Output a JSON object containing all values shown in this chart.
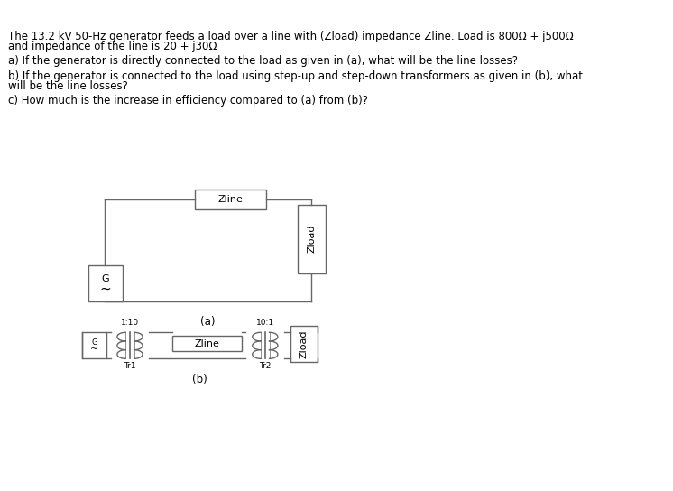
{
  "title_line1": "The 13.2 kV 50-Hz generator feeds a load over a line with (Zload) impedance Zline. Load is 800Ω + j500Ω",
  "title_line2": "and impedance of the line is 20 + j30Ω",
  "q_a": "a) If the generator is directly connected to the load as given in (a), what will be the line losses?",
  "q_b_line1": "b) If the generator is connected to the load using step-up and step-down transformers as given in (b), what",
  "q_b_line2": "will be the line losses?",
  "q_c": "c) How much is the increase in efficiency compared to (a) from (b)?",
  "label_a": "(a)",
  "label_b": "(b)",
  "label_Zline": "Zline",
  "label_Zload": "Zload",
  "label_G": "G",
  "label_tilde": "~",
  "label_tr1_ratio": "1:10",
  "label_tr2_ratio": "10:1",
  "label_Tr1": "Tr1",
  "label_Tr2": "Tr2",
  "bg_color": "#ffffff",
  "text_color": "#000000",
  "line_color": "#666666",
  "font_size_title": 8.5,
  "font_size_q": 8.5,
  "font_size_circuit": 8,
  "font_size_small": 6.5
}
